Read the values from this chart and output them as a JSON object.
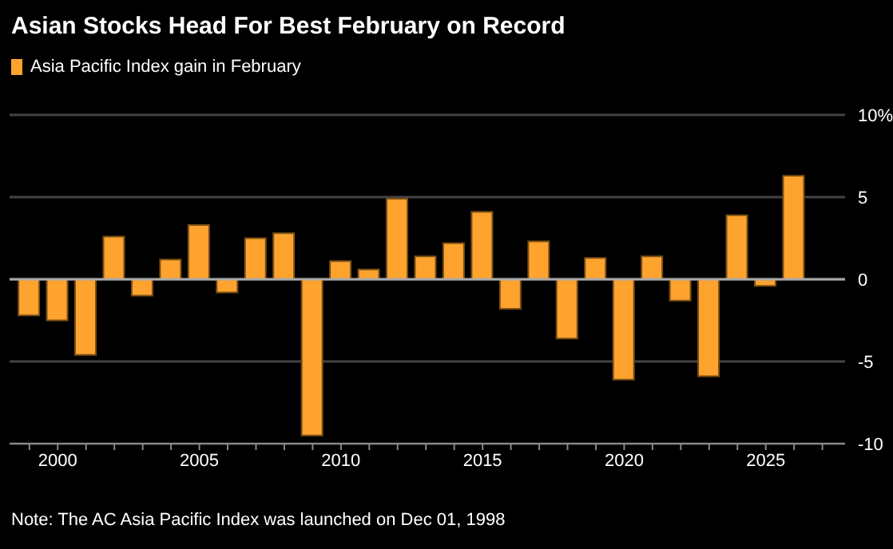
{
  "chart_data": {
    "type": "bar",
    "title": "Asian Stocks Head For Best February on Record",
    "x": [
      1999,
      2000,
      2001,
      2002,
      2003,
      2004,
      2005,
      2006,
      2007,
      2008,
      2009,
      2010,
      2011,
      2012,
      2013,
      2014,
      2015,
      2016,
      2017,
      2018,
      2019,
      2020,
      2021,
      2022,
      2023,
      2024,
      2025,
      2026
    ],
    "series": [
      {
        "name": "Asia Pacific Index gain in February",
        "color": "#ffa32f",
        "values": [
          -2.2,
          -2.5,
          -4.6,
          2.6,
          -1.0,
          1.2,
          3.3,
          -0.8,
          2.5,
          2.8,
          -9.5,
          1.1,
          0.6,
          4.9,
          1.4,
          2.2,
          4.1,
          -1.8,
          2.3,
          -3.6,
          1.3,
          -6.1,
          1.4,
          -1.3,
          -5.9,
          3.9,
          -0.4,
          6.3
        ]
      }
    ],
    "xlim": [
      1998.3,
      2027.8
    ],
    "xticks": [
      {
        "value": 1999,
        "label": null
      },
      2000,
      {
        "value": 2001,
        "label": null
      },
      {
        "value": 2002,
        "label": null
      },
      {
        "value": 2003,
        "label": null
      },
      {
        "value": 2004,
        "label": null
      },
      2005,
      {
        "value": 2006,
        "label": null
      },
      {
        "value": 2007,
        "label": null
      },
      {
        "value": 2008,
        "label": null
      },
      {
        "value": 2009,
        "label": null
      },
      2010,
      {
        "value": 2011,
        "label": null
      },
      {
        "value": 2012,
        "label": null
      },
      {
        "value": 2013,
        "label": null
      },
      {
        "value": 2014,
        "label": null
      },
      2015,
      {
        "value": 2016,
        "label": null
      },
      {
        "value": 2017,
        "label": null
      },
      {
        "value": 2018,
        "label": null
      },
      {
        "value": 2019,
        "label": null
      },
      2020,
      {
        "value": 2021,
        "label": null
      },
      {
        "value": 2022,
        "label": null
      },
      {
        "value": 2023,
        "label": null
      },
      {
        "value": 2024,
        "label": null
      },
      2025,
      {
        "value": 2026,
        "label": null
      },
      {
        "value": 2027,
        "label": null
      }
    ],
    "ylim": [
      -10,
      10
    ],
    "yticks": [
      -10,
      -5,
      0,
      5,
      {
        "value": 10,
        "label": "10%"
      }
    ],
    "grid": "y",
    "legend": "top left",
    "annotations": [
      "Note: The AC Asia Pacific Index was launched on Dec 01, 1998"
    ]
  }
}
